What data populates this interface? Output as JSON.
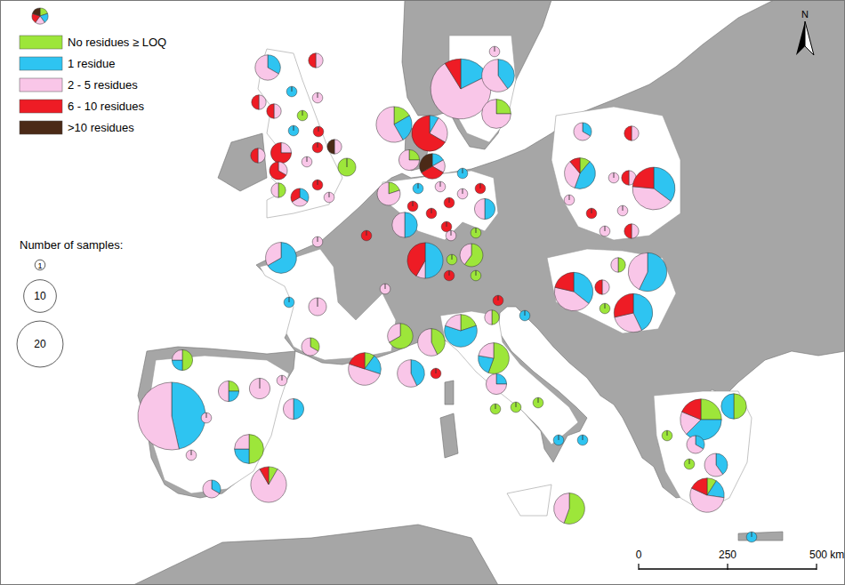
{
  "chart_data": {
    "type": "pie_map",
    "categories": [
      "No residues ≥ LOQ",
      "1 residue",
      "2 - 5 residues",
      "6 - 10 residues",
      ">10 residues"
    ],
    "colors": [
      "#9de63a",
      "#2ec4f1",
      "#f9c6e8",
      "#ee1c25",
      "#4b2a17"
    ],
    "size_legend": {
      "title": "Number of samples:",
      "values": [
        1,
        10,
        20
      ]
    },
    "scale_bar": {
      "ticks": [
        0,
        250,
        {
          "value": 500,
          "label": "500 km"
        }
      ]
    },
    "north": "N",
    "pies": [
      [
        0,
        2,
        4,
        0,
        0
      ],
      [
        0,
        0,
        1,
        1,
        0
      ],
      [
        0,
        1,
        0,
        0,
        0
      ],
      [
        0,
        0,
        1,
        0,
        0
      ],
      [
        1,
        0,
        0,
        0,
        0
      ],
      [
        0,
        0,
        1,
        1,
        0
      ],
      [
        0,
        0,
        0,
        1,
        0
      ],
      [
        0,
        1,
        0,
        0,
        0
      ],
      [
        0,
        0,
        0,
        1,
        0
      ],
      [
        0,
        0,
        1,
        0,
        1
      ],
      [
        0,
        0,
        1,
        3,
        0
      ],
      [
        0,
        0,
        1,
        0,
        0
      ],
      [
        0,
        0,
        1,
        1,
        0
      ],
      [
        0,
        0,
        1,
        1,
        0
      ],
      [
        3,
        0,
        0,
        0,
        0
      ],
      [
        0,
        0,
        1,
        2,
        0
      ],
      [
        1,
        0,
        1,
        0,
        0
      ],
      [
        0,
        1,
        1,
        1,
        0
      ],
      [
        0,
        0,
        0,
        1,
        0
      ],
      [
        0,
        0,
        1,
        0,
        0
      ],
      [
        2,
        3,
        7,
        0,
        0
      ],
      [
        0,
        1,
        3,
        8,
        0
      ],
      [
        0,
        6,
        25,
        3,
        0
      ],
      [
        0,
        4,
        6,
        0,
        0
      ],
      [
        2,
        0,
        6,
        0,
        0
      ],
      [
        0,
        0,
        1,
        0,
        0
      ],
      [
        1,
        0,
        3,
        0,
        0
      ],
      [
        0,
        1,
        1,
        2,
        2
      ],
      [
        1,
        0,
        4,
        0,
        0
      ],
      [
        0,
        1,
        0,
        0,
        0
      ],
      [
        0,
        0,
        1,
        0,
        0
      ],
      [
        0,
        1,
        0,
        0,
        0
      ],
      [
        0,
        0,
        0,
        1,
        0
      ],
      [
        0,
        0,
        1,
        0,
        0
      ],
      [
        0,
        0,
        0,
        1,
        0
      ],
      [
        0,
        2,
        2,
        0,
        0
      ],
      [
        0,
        0,
        0,
        1,
        0
      ],
      [
        0,
        0,
        0,
        1,
        0
      ],
      [
        0,
        0,
        0,
        1,
        0
      ],
      [
        0,
        3,
        3,
        0,
        0
      ],
      [
        0,
        0,
        0,
        1,
        0
      ],
      [
        0,
        6,
        1,
        5,
        0
      ],
      [
        0,
        0,
        1,
        0,
        0
      ],
      [
        1,
        0,
        0,
        0,
        0
      ],
      [
        3,
        0,
        2,
        0,
        0
      ],
      [
        1,
        0,
        0,
        0,
        0
      ],
      [
        0,
        0,
        0,
        1,
        0
      ],
      [
        1,
        0,
        0,
        0,
        0
      ],
      [
        0,
        0,
        1,
        0,
        0
      ],
      [
        0,
        6,
        3,
        0,
        0
      ],
      [
        0,
        0,
        1,
        0,
        0
      ],
      [
        0,
        0,
        3,
        0,
        0
      ],
      [
        0,
        1,
        0,
        0,
        0
      ],
      [
        1,
        0,
        2,
        0,
        0
      ],
      [
        1,
        2,
        5,
        2,
        0
      ],
      [
        4,
        0,
        2,
        0,
        0
      ],
      [
        3,
        0,
        4,
        0,
        0
      ],
      [
        0,
        3,
        4,
        0,
        0
      ],
      [
        0,
        0,
        0,
        1,
        0
      ],
      [
        2,
        6,
        2,
        0,
        0
      ],
      [
        1,
        0,
        1,
        0,
        0
      ],
      [
        0,
        0,
        0,
        1,
        0
      ],
      [
        5,
        2,
        2,
        0,
        0
      ],
      [
        0,
        1,
        3,
        0,
        0
      ],
      [
        1,
        0,
        0,
        0,
        0
      ],
      [
        1,
        0,
        0,
        0,
        0
      ],
      [
        1,
        0,
        0,
        0,
        0
      ],
      [
        0,
        1,
        0,
        0,
        0
      ],
      [
        0,
        1,
        0,
        0,
        0
      ],
      [
        0,
        1,
        0,
        0,
        0
      ],
      [
        5,
        0,
        4,
        0,
        0
      ],
      [
        2,
        1,
        1,
        0,
        0
      ],
      [
        1,
        1,
        2,
        0,
        0
      ],
      [
        0,
        0,
        4,
        0,
        0
      ],
      [
        0,
        0,
        1,
        0,
        0
      ],
      [
        0,
        20,
        23,
        0,
        0
      ],
      [
        0,
        0,
        1,
        0,
        0
      ],
      [
        0,
        2,
        2,
        0,
        0
      ],
      [
        4,
        2,
        2,
        0,
        0
      ],
      [
        0,
        0,
        1,
        0,
        0
      ],
      [
        1,
        0,
        10,
        1,
        0
      ],
      [
        0,
        1,
        2,
        0,
        0
      ],
      [
        0,
        1,
        2,
        0,
        0
      ],
      [
        0,
        0,
        1,
        1,
        0
      ],
      [
        1,
        4,
        3,
        1,
        0
      ],
      [
        0,
        0,
        1,
        0,
        0
      ],
      [
        0,
        0,
        1,
        1,
        0
      ],
      [
        0,
        6,
        7,
        4,
        0
      ],
      [
        0,
        0,
        1,
        0,
        0
      ],
      [
        0,
        0,
        0,
        1,
        0
      ],
      [
        0,
        0,
        1,
        0,
        0
      ],
      [
        0,
        0,
        1,
        0,
        0
      ],
      [
        0,
        0,
        1,
        1,
        0
      ],
      [
        1,
        0,
        1,
        0,
        0
      ],
      [
        0,
        5,
        6,
        3,
        0
      ],
      [
        0,
        0,
        1,
        1,
        0
      ],
      [
        0,
        8,
        6,
        0,
        0
      ],
      [
        1,
        0,
        0,
        0,
        0
      ],
      [
        0,
        6,
        4,
        4,
        0
      ],
      [
        4,
        6,
        3,
        3,
        0
      ],
      [
        3,
        3,
        0,
        0,
        0
      ],
      [
        0,
        1,
        2,
        0,
        0
      ],
      [
        0,
        2,
        3,
        0,
        0
      ],
      [
        1,
        0,
        0,
        0,
        0
      ],
      [
        1,
        2,
        6,
        2,
        0
      ],
      [
        1,
        0,
        0,
        0,
        0
      ],
      [
        0,
        1,
        0,
        0,
        0
      ]
    ]
  }
}
